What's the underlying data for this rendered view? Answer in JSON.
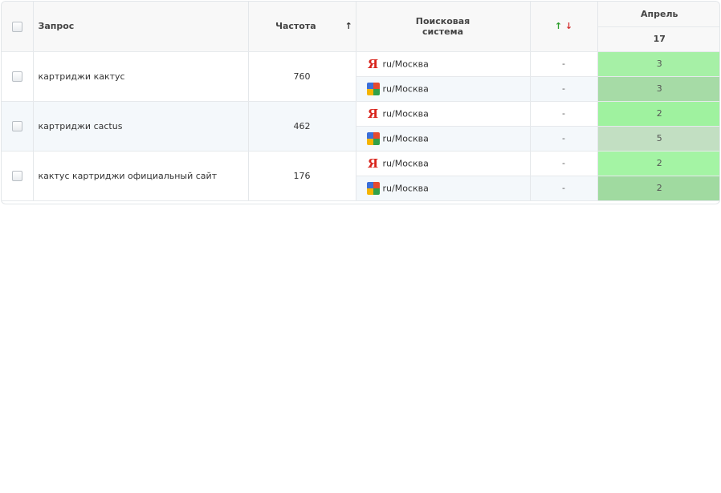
{
  "header": {
    "query_label": "Запрос",
    "frequency_label": "Частота",
    "frequency_sort": "↑",
    "engine_label_line1": "Поисковая",
    "engine_label_line2": "система",
    "trend_up": "↑",
    "trend_down": "↓",
    "month_label": "Апрель",
    "day_label": "17"
  },
  "colors": {
    "pos_2_a": "#aaf2a9",
    "pos_3_a": "#a6f0a6",
    "pos_3_b": "#a6dba6",
    "pos_2_b": "#9ff29f",
    "pos_5": "#c2dfc2",
    "pos_2_c": "#a4f4a4",
    "pos_2_d": "#a0daa0"
  },
  "rows": [
    {
      "query": "картриджи кактус",
      "frequency": "760",
      "engines": [
        {
          "engine": "yandex-icon",
          "region": "ru/Москва",
          "trend": "-",
          "position": "3"
        },
        {
          "engine": "google-icon",
          "region": "ru/Москва",
          "trend": "-",
          "position": "3"
        }
      ]
    },
    {
      "query": "картриджи cactus",
      "frequency": "462",
      "engines": [
        {
          "engine": "yandex-icon",
          "region": "ru/Москва",
          "trend": "-",
          "position": "2"
        },
        {
          "engine": "google-icon",
          "region": "ru/Москва",
          "trend": "-",
          "position": "5"
        }
      ]
    },
    {
      "query": "кактус картриджи официальный сайт",
      "frequency": "176",
      "engines": [
        {
          "engine": "yandex-icon",
          "region": "ru/Москва",
          "trend": "-",
          "position": "2"
        },
        {
          "engine": "google-icon",
          "region": "ru/Москва",
          "trend": "-",
          "position": "2"
        }
      ]
    }
  ]
}
